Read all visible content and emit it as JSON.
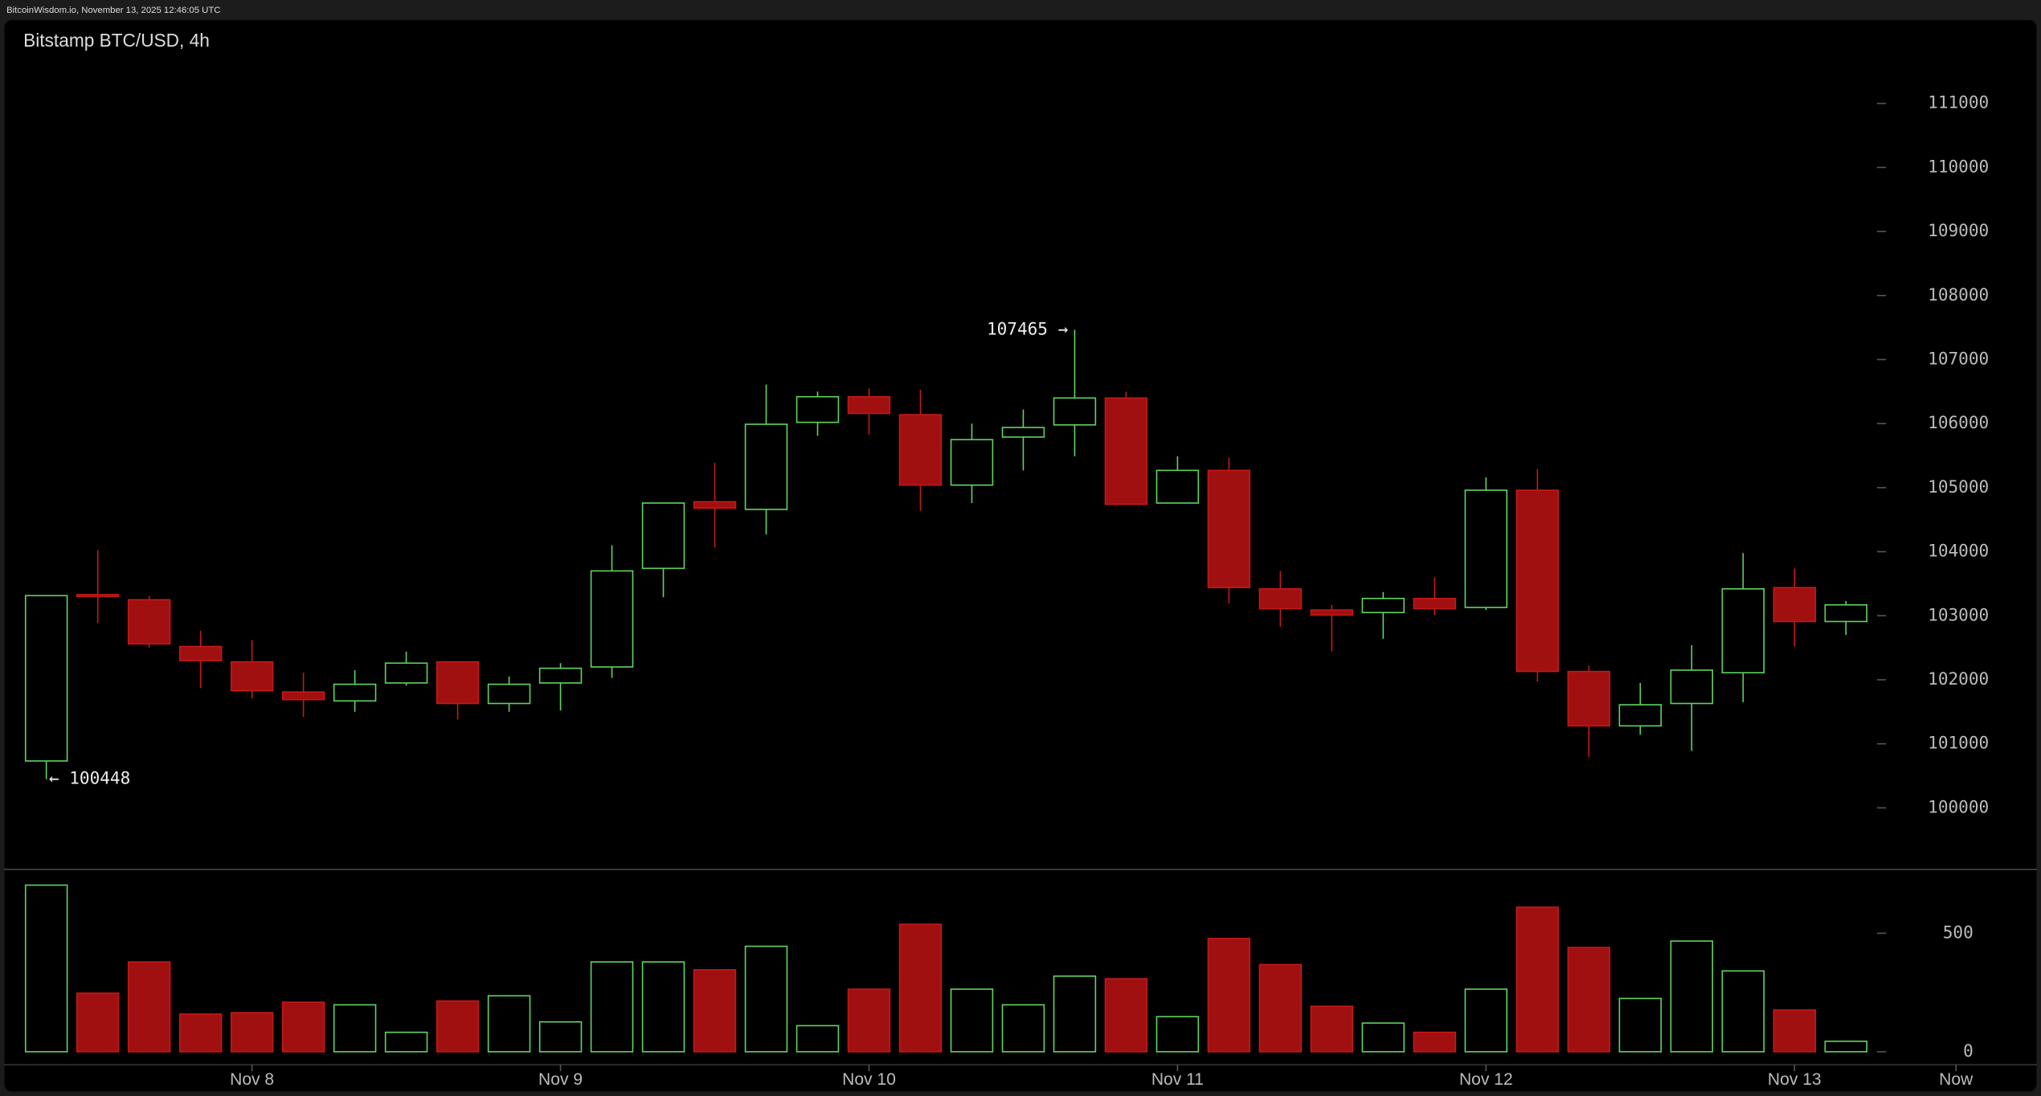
{
  "header": "BitcoinWisdom.io, November 13, 2025 12:46:05 UTC",
  "chart_data": {
    "type": "candlestick",
    "title": "Bitstamp BTC/USD, 4h",
    "open": [
      100732,
      103330,
      103250,
      102520,
      102280,
      101810,
      101670,
      101950,
      102280,
      101630,
      101950,
      102200,
      103740,
      104780,
      104660,
      106020,
      106420,
      106140,
      105040,
      105790,
      105980,
      106400,
      104760,
      105270,
      103420,
      103090,
      103050,
      103270,
      103130,
      104960,
      102130,
      101280,
      101630,
      102110,
      103440,
      102910
    ],
    "high": [
      103314,
      104025,
      103310,
      102765,
      102620,
      102110,
      102150,
      102440,
      102280,
      102050,
      102260,
      104100,
      104760,
      105390,
      106610,
      106500,
      106550,
      106530,
      106000,
      106220,
      107465,
      106500,
      105490,
      105470,
      103700,
      103170,
      103370,
      103600,
      105160,
      105290,
      102220,
      101950,
      102540,
      103980,
      103740,
      103230
    ],
    "low": [
      100448,
      102887,
      102500,
      101870,
      101710,
      101420,
      101500,
      101910,
      101380,
      101500,
      101520,
      102030,
      103290,
      104070,
      104270,
      105810,
      105830,
      104640,
      104760,
      105270,
      105490,
      104740,
      104760,
      103190,
      102830,
      102440,
      102640,
      103010,
      103090,
      101970,
      100790,
      101140,
      100890,
      101650,
      102520,
      102700
    ],
    "close": [
      103314,
      103300,
      102560,
      102300,
      101830,
      101690,
      101930,
      102260,
      101630,
      101930,
      102180,
      103700,
      104760,
      104680,
      105990,
      106420,
      106160,
      105040,
      105750,
      105940,
      106400,
      104740,
      105270,
      103440,
      103110,
      103010,
      103270,
      103110,
      104960,
      102130,
      101280,
      101610,
      102150,
      103420,
      102910,
      103170
    ],
    "volume": [
      703,
      247,
      379,
      159,
      165,
      209,
      198,
      82,
      214,
      236,
      126,
      379,
      379,
      346,
      445,
      110,
      264,
      538,
      264,
      198,
      319,
      308,
      148,
      478,
      368,
      192,
      121,
      82,
      264,
      610,
      440,
      225,
      467,
      341,
      176,
      44
    ],
    "up_color": "#5fd35f",
    "down_color": "#a01010",
    "ylim": [
      99200,
      111700
    ],
    "yticks": [
      100000,
      101000,
      102000,
      103000,
      104000,
      105000,
      106000,
      107000,
      108000,
      109000,
      110000,
      111000
    ],
    "volume_ylim": [
      0,
      769
    ],
    "volume_ticks": [
      0,
      500
    ],
    "xlim": [
      -0.8,
      36.3
    ],
    "xticks": [
      {
        "value": 4,
        "label": "Nov 8"
      },
      {
        "value": 10,
        "label": "Nov 9"
      },
      {
        "value": 16,
        "label": "Nov 10"
      },
      {
        "value": 22,
        "label": "Nov 11"
      },
      {
        "value": 28,
        "label": "Nov 12"
      },
      {
        "value": 34,
        "label": "Nov 13"
      },
      {
        "value": 37.14,
        "label": "Now"
      }
    ],
    "annotations": [
      {
        "text": "107465 →",
        "index": 20
      },
      {
        "text": "← 100448",
        "index": 0
      }
    ]
  }
}
